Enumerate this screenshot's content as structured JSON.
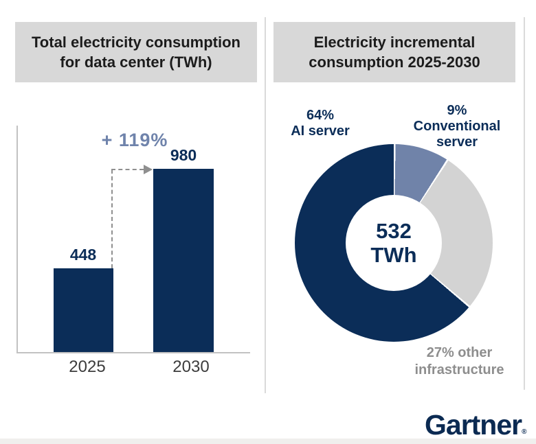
{
  "left_panel": {
    "title_line1": "Total electricity consumption",
    "title_line2": "for data center (TWh)"
  },
  "right_panel": {
    "title_line1": "Electricity incremental",
    "title_line2": "consumption 2025-2030"
  },
  "branding": {
    "logo_text": "Gartner",
    "registered_mark": "®"
  },
  "colors": {
    "navy": "#0b2d58",
    "slate_blue": "#7083a9",
    "slice_gray": "#d3d3d3",
    "annotation_blue": "#6f83ab",
    "label_gray": "#8e8e8e",
    "title_box_bg": "#d8d8d8"
  },
  "chart_data": [
    {
      "type": "bar",
      "title": "Total electricity consumption for data center (TWh)",
      "categories": [
        "2025",
        "2030"
      ],
      "values": [
        448,
        980
      ],
      "value_labels": [
        "448",
        "980"
      ],
      "annotation": "+ 119%",
      "bar_color": "#0b2d58",
      "grid": false,
      "legend": "none"
    },
    {
      "type": "pie",
      "donut": true,
      "title": "Electricity incremental consumption 2025-2030",
      "center_value": "532",
      "center_unit": "TWh",
      "start": "12 o'clock, clockwise",
      "slices": [
        {
          "label": "Conventional server",
          "pct": 9,
          "color": "#7083a9"
        },
        {
          "label": "Other infrastructure",
          "pct": 27,
          "color": "#d3d3d3"
        },
        {
          "label": "AI server",
          "pct": 64,
          "color": "#0b2d58"
        }
      ],
      "callouts": {
        "ai_line1": "64%",
        "ai_line2": "AI server",
        "conv_line1": "9%",
        "conv_line2": "Conventional",
        "conv_line3": "server",
        "other_line1": "27% other",
        "other_line2": "infrastructure"
      }
    }
  ]
}
